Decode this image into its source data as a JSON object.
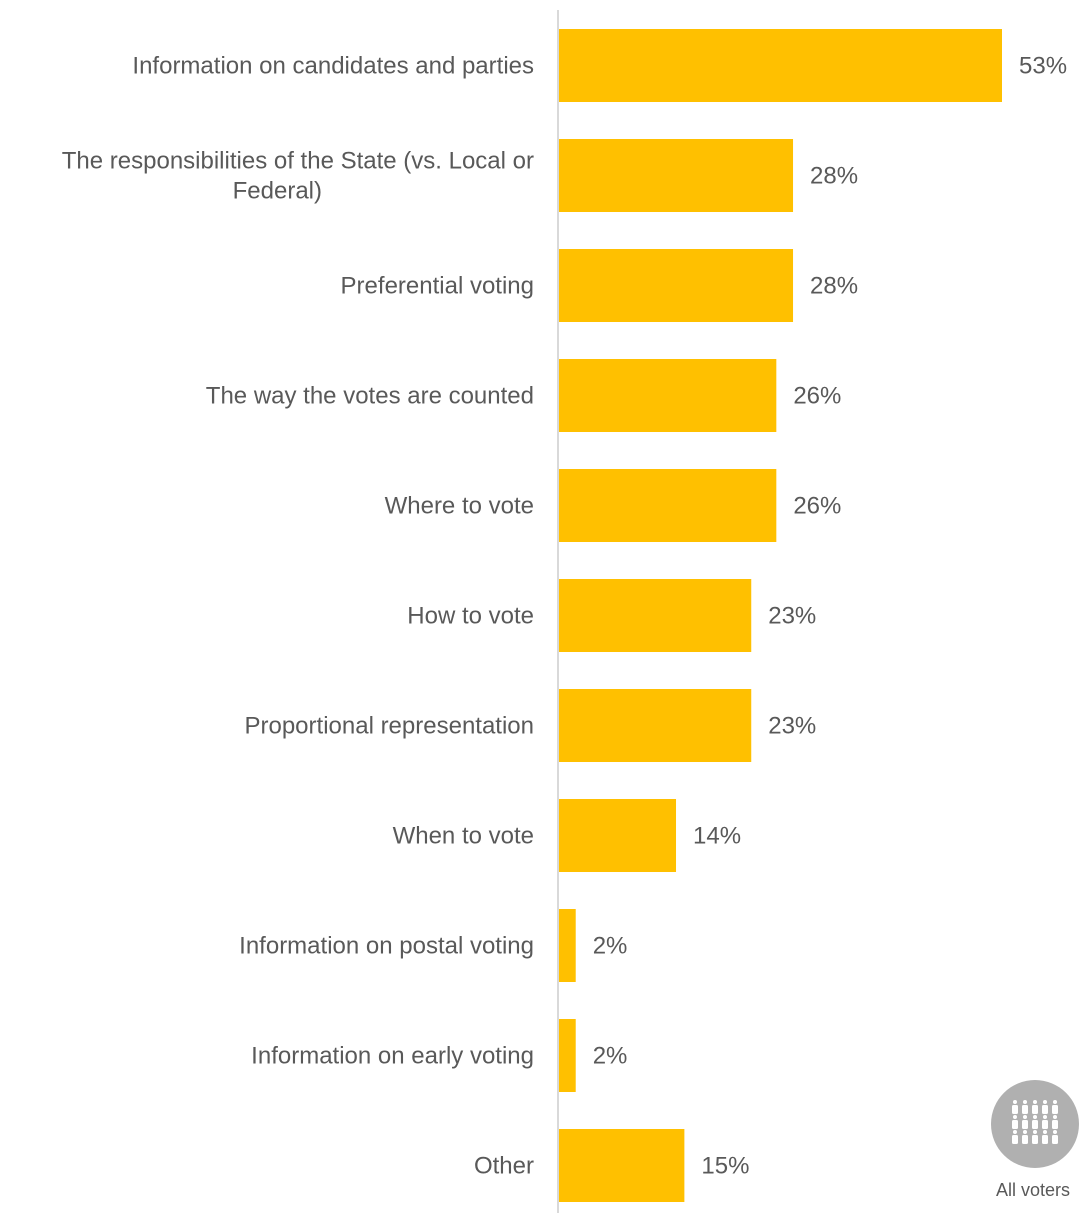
{
  "chart_data": {
    "type": "bar",
    "orientation": "horizontal",
    "categories": [
      "Information on candidates and parties",
      "The responsibilities of the State (vs. Local or Federal)",
      "Preferential voting",
      "The way the votes are counted",
      "Where to vote",
      "How to vote",
      "Proportional representation",
      "When to vote",
      "Information on postal voting",
      "Information on early voting",
      "Other"
    ],
    "category_lines": [
      [
        "Information on candidates and parties"
      ],
      [
        "The responsibilities of the State (vs. Local or",
        "Federal)"
      ],
      [
        "Preferential voting"
      ],
      [
        "The way the votes are counted"
      ],
      [
        "Where to vote"
      ],
      [
        "How to vote"
      ],
      [
        "Proportional representation"
      ],
      [
        "When to vote"
      ],
      [
        "Information on postal voting"
      ],
      [
        "Information on early voting"
      ],
      [
        "Other"
      ]
    ],
    "values": [
      53,
      28,
      28,
      26,
      26,
      23,
      23,
      14,
      2,
      2,
      15
    ],
    "value_labels": [
      "53%",
      "28%",
      "28%",
      "26%",
      "26%",
      "23%",
      "23%",
      "14%",
      "2%",
      "2%",
      "15%"
    ],
    "unit": "%",
    "xlim": [
      0,
      53
    ],
    "grid": false,
    "legend": "none",
    "colors": {
      "bar": "#FFC000",
      "text": "#595959",
      "axis": "#d9d9d9",
      "badge": "#b0b0b0"
    }
  },
  "badge": {
    "icon": "people-group-icon",
    "label": "All voters"
  }
}
